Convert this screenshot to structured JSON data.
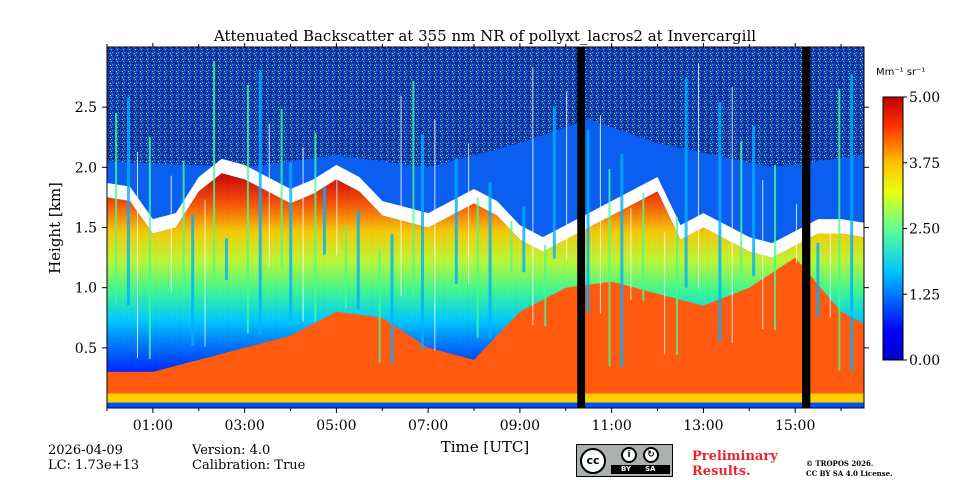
{
  "chart_data": {
    "type": "heatmap",
    "title": "Attenuated Backscatter at 355 nm NR of pollyxt_lacros2 at Invercargill",
    "xlabel": "Time [UTC]",
    "ylabel": "Height [km]",
    "xlim": [
      0.0,
      16.5
    ],
    "ylim": [
      0.0,
      3.0
    ],
    "xticks": [
      1,
      3,
      5,
      7,
      9,
      11,
      13,
      15
    ],
    "xtick_labels": [
      "01:00",
      "03:00",
      "05:00",
      "07:00",
      "09:00",
      "11:00",
      "13:00",
      "15:00"
    ],
    "yticks": [
      0.5,
      1.0,
      1.5,
      2.0,
      2.5
    ],
    "ytick_labels": [
      "0.5",
      "1.0",
      "1.5",
      "2.0",
      "2.5"
    ],
    "colorbar": {
      "label": "Mm⁻¹ sr⁻¹",
      "range": [
        0.0,
        5.0
      ],
      "ticks": [
        0.0,
        1.25,
        2.5,
        3.75,
        5.0
      ],
      "tick_labels": [
        "0.00",
        "1.25",
        "2.50",
        "3.75",
        "5.00"
      ],
      "colormap": "jet"
    },
    "masked_periods_hours": [
      [
        10.25,
        10.42
      ],
      [
        15.15,
        15.33
      ]
    ],
    "cloud_base_km": [
      [
        0.0,
        1.75
      ],
      [
        0.5,
        1.72
      ],
      [
        1.0,
        1.45
      ],
      [
        1.5,
        1.5
      ],
      [
        2.0,
        1.8
      ],
      [
        2.5,
        1.95
      ],
      [
        3.0,
        1.9
      ],
      [
        3.5,
        1.8
      ],
      [
        4.0,
        1.7
      ],
      [
        4.5,
        1.78
      ],
      [
        5.0,
        1.9
      ],
      [
        5.5,
        1.8
      ],
      [
        6.0,
        1.6
      ],
      [
        6.5,
        1.55
      ],
      [
        7.0,
        1.5
      ],
      [
        7.5,
        1.6
      ],
      [
        8.0,
        1.7
      ],
      [
        8.5,
        1.6
      ],
      [
        9.0,
        1.4
      ],
      [
        9.5,
        1.3
      ],
      [
        10.0,
        1.4
      ],
      [
        10.5,
        1.5
      ],
      [
        11.0,
        1.6
      ],
      [
        11.5,
        1.7
      ],
      [
        12.0,
        1.8
      ],
      [
        12.5,
        1.4
      ],
      [
        13.0,
        1.5
      ],
      [
        13.5,
        1.4
      ],
      [
        14.0,
        1.3
      ],
      [
        14.5,
        1.25
      ],
      [
        15.0,
        1.35
      ],
      [
        15.5,
        1.45
      ],
      [
        16.0,
        1.45
      ],
      [
        16.5,
        1.42
      ]
    ],
    "boundary_layer_top_km": [
      [
        0.0,
        0.3
      ],
      [
        1.0,
        0.3
      ],
      [
        2.0,
        0.4
      ],
      [
        3.0,
        0.5
      ],
      [
        4.0,
        0.6
      ],
      [
        5.0,
        0.8
      ],
      [
        6.0,
        0.75
      ],
      [
        7.0,
        0.5
      ],
      [
        8.0,
        0.4
      ],
      [
        9.0,
        0.8
      ],
      [
        10.0,
        1.0
      ],
      [
        11.0,
        1.05
      ],
      [
        12.0,
        0.95
      ],
      [
        13.0,
        0.85
      ],
      [
        14.0,
        1.0
      ],
      [
        15.0,
        1.25
      ],
      [
        16.0,
        0.8
      ],
      [
        16.5,
        0.7
      ]
    ],
    "ground_layer_top_km": 0.12
  },
  "footer": {
    "date": "2026-04-09",
    "lc": "LC: 1.73e+13",
    "version": "Version: 4.0",
    "calibration": "Calibration: True",
    "preliminary_line1": "Preliminary",
    "preliminary_line2": "Results.",
    "copyright_line1": "© TROPOS 2026.",
    "copyright_line2": "CC BY SA 4.0 License.",
    "cc_label": "cc",
    "by_label": "BY",
    "sa_label": "SA"
  },
  "colors": {
    "background": "#ffffff",
    "preliminary": "#e8262c",
    "masked": "#000000"
  }
}
